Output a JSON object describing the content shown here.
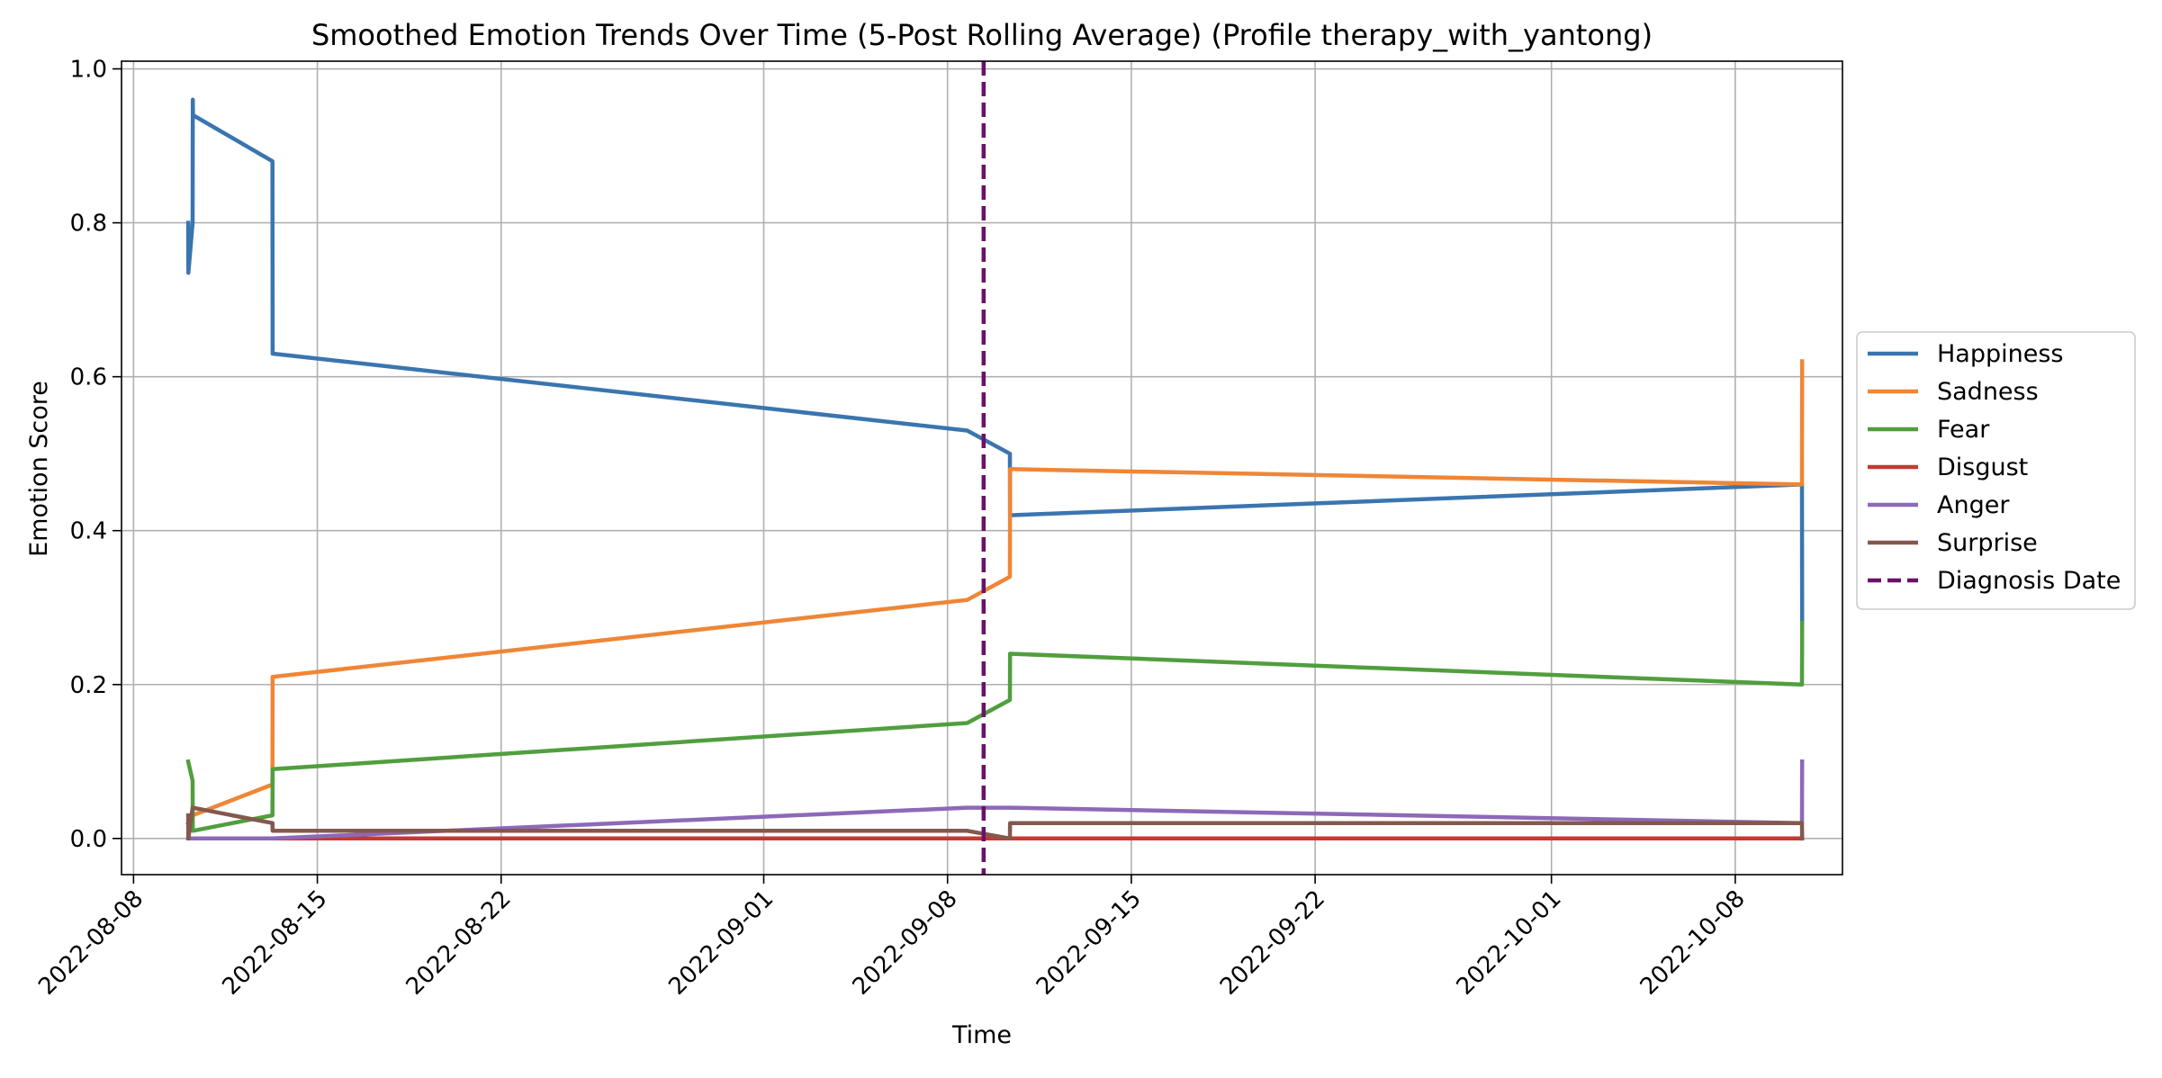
{
  "chart_data": {
    "type": "line",
    "title": "Smoothed Emotion Trends Over Time (5-Post Rolling Average) (Profile therapy_with_yantong)",
    "xlabel": "Time",
    "ylabel": "Emotion Score",
    "xlim": [
      "2022-08-07T13:00",
      "2022-10-12T02:00"
    ],
    "ylim": [
      -0.047,
      1.01
    ],
    "x_ticks": [
      "2022-08-08",
      "2022-08-15",
      "2022-08-22",
      "2022-09-01",
      "2022-09-08",
      "2022-09-15",
      "2022-09-22",
      "2022-10-01",
      "2022-10-08"
    ],
    "y_ticks": [
      "0.0",
      "0.2",
      "0.4",
      "0.6",
      "0.8",
      "1.0"
    ],
    "grid": true,
    "legend_position": "center-right",
    "series": [
      {
        "name": "Happiness",
        "color": "#3a75af",
        "points": [
          [
            "2022-08-10T02:00",
            0.8
          ],
          [
            "2022-08-10T02:10",
            0.735
          ],
          [
            "2022-08-10T06:00",
            0.8
          ],
          [
            "2022-08-10T06:10",
            0.96
          ],
          [
            "2022-08-10T06:20",
            0.94
          ],
          [
            "2022-08-13T07:00",
            0.88
          ],
          [
            "2022-08-13T07:10",
            0.63
          ],
          [
            "2022-09-08T18:00",
            0.53
          ],
          [
            "2022-09-10T09:00",
            0.5
          ],
          [
            "2022-09-10T09:10",
            0.42
          ],
          [
            "2022-10-10T13:00",
            0.46
          ],
          [
            "2022-10-10T13:10",
            0.28
          ]
        ]
      },
      {
        "name": "Sadness",
        "color": "#ef8636",
        "points": [
          [
            "2022-08-10T02:00",
            0.02
          ],
          [
            "2022-08-10T06:00",
            0.03
          ],
          [
            "2022-08-13T07:00",
            0.07
          ],
          [
            "2022-08-13T07:10",
            0.21
          ],
          [
            "2022-09-08T18:00",
            0.31
          ],
          [
            "2022-09-10T09:00",
            0.34
          ],
          [
            "2022-09-10T09:10",
            0.48
          ],
          [
            "2022-10-10T13:00",
            0.46
          ],
          [
            "2022-10-10T13:10",
            0.62
          ]
        ]
      },
      {
        "name": "Fear",
        "color": "#519e3e",
        "points": [
          [
            "2022-08-10T02:00",
            0.1
          ],
          [
            "2022-08-10T06:00",
            0.075
          ],
          [
            "2022-08-10T06:10",
            0.01
          ],
          [
            "2022-08-13T07:00",
            0.03
          ],
          [
            "2022-08-13T07:10",
            0.09
          ],
          [
            "2022-09-08T18:00",
            0.15
          ],
          [
            "2022-09-10T09:00",
            0.18
          ],
          [
            "2022-09-10T09:10",
            0.24
          ],
          [
            "2022-10-10T13:00",
            0.2
          ],
          [
            "2022-10-10T13:10",
            0.28
          ]
        ]
      },
      {
        "name": "Disgust",
        "color": "#c53932",
        "points": [
          [
            "2022-08-10T02:00",
            0.0
          ],
          [
            "2022-10-10T13:00",
            0.0
          ]
        ]
      },
      {
        "name": "Anger",
        "color": "#8d69b8",
        "points": [
          [
            "2022-08-10T02:00",
            0.0
          ],
          [
            "2022-08-13T07:00",
            0.0
          ],
          [
            "2022-09-08T18:00",
            0.04
          ],
          [
            "2022-09-10T09:00",
            0.04
          ],
          [
            "2022-10-10T13:00",
            0.02
          ],
          [
            "2022-10-10T13:10",
            0.1
          ]
        ]
      },
      {
        "name": "Surprise",
        "color": "#84584e",
        "points": [
          [
            "2022-08-10T02:00",
            0.03
          ],
          [
            "2022-08-10T02:10",
            0.0
          ],
          [
            "2022-08-10T06:00",
            0.04
          ],
          [
            "2022-08-13T07:00",
            0.02
          ],
          [
            "2022-08-13T07:10",
            0.01
          ],
          [
            "2022-09-08T18:00",
            0.01
          ],
          [
            "2022-09-10T09:00",
            0.0
          ],
          [
            "2022-09-10T09:10",
            0.02
          ],
          [
            "2022-10-10T13:00",
            0.02
          ],
          [
            "2022-10-10T13:10",
            0.0
          ]
        ]
      }
    ],
    "annotations": [
      {
        "name": "Diagnosis Date",
        "type": "vline",
        "x": "2022-09-09T09:00",
        "color": "#6a1169"
      }
    ]
  }
}
